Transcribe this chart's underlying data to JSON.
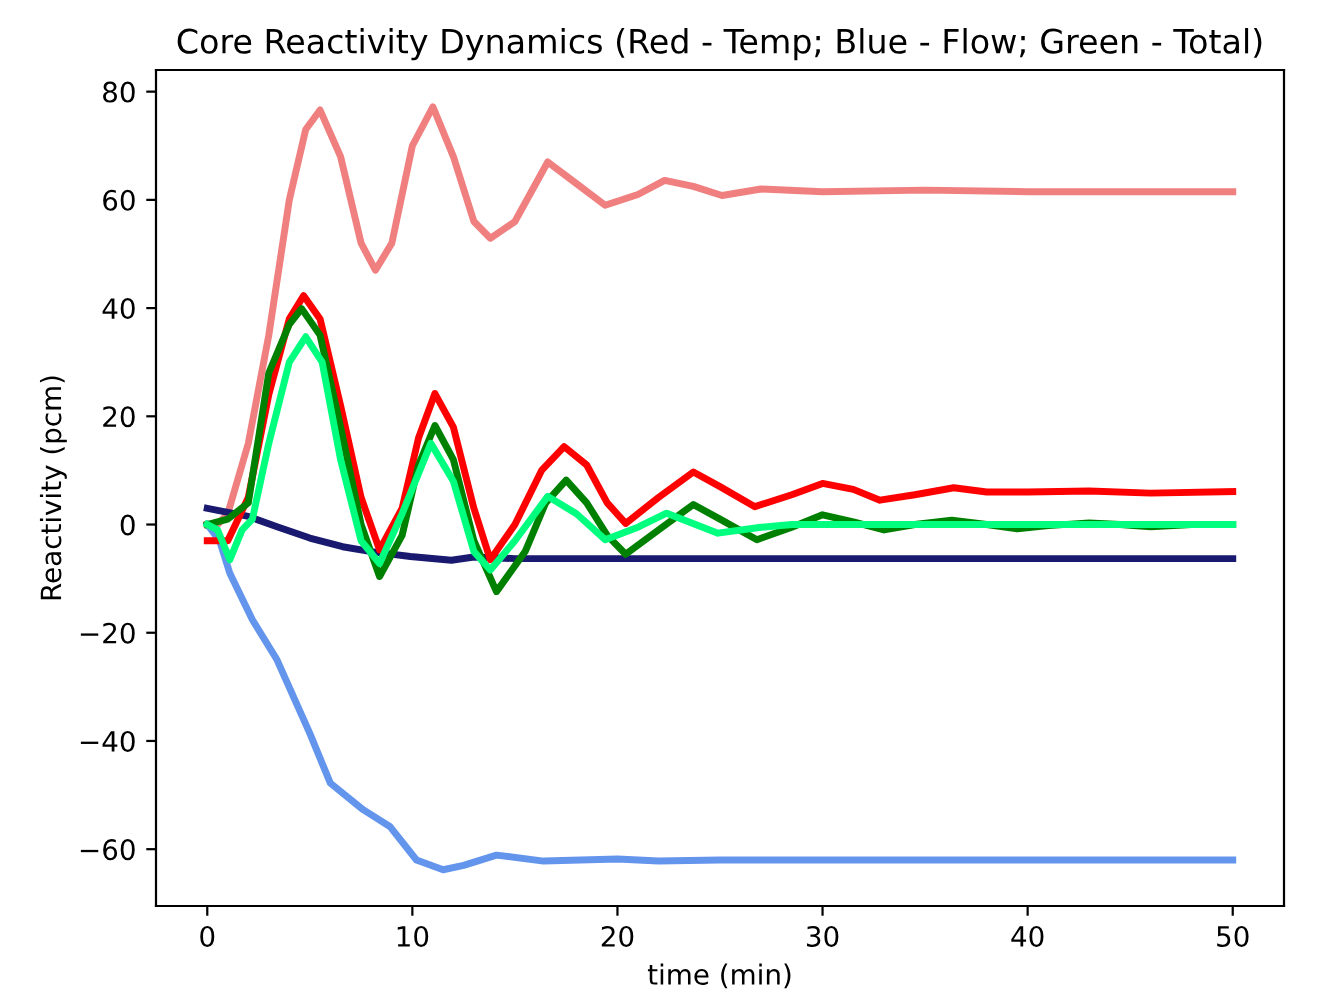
{
  "chart_data": {
    "type": "line",
    "title": "Core Reactivity Dynamics (Red - Temp; Blue - Flow; Green - Total)",
    "xlabel": "time (min)",
    "ylabel": "Reactivity (pcm)",
    "xlim": [
      -2.5,
      52.5
    ],
    "ylim": [
      -70.5,
      84
    ],
    "xticks": [
      0,
      10,
      20,
      30,
      40,
      50
    ],
    "yticks": [
      {
        "value": -60,
        "label": "−60"
      },
      {
        "value": -40,
        "label": "−40"
      },
      {
        "value": -20,
        "label": "−20"
      },
      0,
      20,
      40,
      60,
      80
    ],
    "grid": false,
    "legend": false,
    "marker": "none",
    "line_style": "solid",
    "series": [
      {
        "color": "#f08080",
        "x": [
          0,
          0.5,
          1,
          2,
          3,
          4,
          4.8,
          5.5,
          6.5,
          7.5,
          8.2,
          9,
          10,
          11,
          12,
          13,
          13.8,
          15,
          16.6,
          18,
          19.4,
          21,
          22.3,
          23.7,
          25.1,
          27,
          30,
          35,
          40,
          45,
          50
        ],
        "values": [
          0,
          0,
          2,
          15,
          35,
          60,
          73,
          76.6,
          68,
          52,
          47,
          52,
          70,
          77.2,
          68,
          56,
          52.9,
          56,
          67,
          63,
          59,
          61,
          63.6,
          62.5,
          60.8,
          62,
          61.5,
          61.8,
          61.5,
          61.5,
          61.5
        ]
      },
      {
        "color": "#6495ed",
        "x": [
          0,
          0.6,
          1.1,
          2.2,
          3.4,
          5,
          6,
          7.6,
          8.9,
          10.2,
          11.5,
          12.5,
          14.1,
          16.4,
          20,
          22,
          25,
          30,
          40,
          50
        ],
        "values": [
          0,
          -3,
          -9,
          -17.6,
          -25,
          -38.6,
          -47.8,
          -52.7,
          -55.8,
          -62,
          -63.8,
          -63,
          -61.1,
          -62.2,
          -61.8,
          -62.2,
          -62,
          -62,
          -62,
          -62
        ]
      },
      {
        "color": "#191970",
        "x": [
          0,
          2,
          3.4,
          5,
          6.6,
          8,
          9.9,
          11.9,
          13,
          15,
          20,
          30,
          40,
          50
        ],
        "values": [
          3,
          1.5,
          -0.4,
          -2.5,
          -4.1,
          -5,
          -5.9,
          -6.6,
          -6,
          -6.3,
          -6.3,
          -6.3,
          -6.3,
          -6.3
        ]
      },
      {
        "color": "#ff0000",
        "x": [
          0,
          1,
          2,
          3,
          4,
          4.7,
          5.5,
          6.5,
          7.5,
          8.4,
          9.5,
          10.3,
          11.1,
          12,
          13,
          13.8,
          15,
          16.3,
          17.4,
          18.5,
          19.5,
          20.4,
          22,
          23.7,
          25,
          26.7,
          28.5,
          30,
          31.5,
          32.8,
          34.5,
          36.4,
          38,
          40,
          43,
          46,
          50
        ],
        "values": [
          -3,
          -3,
          5,
          24,
          38,
          42.3,
          38,
          22,
          5,
          -4.7,
          3,
          16,
          24.2,
          18,
          3,
          -6.5,
          0,
          10,
          14.4,
          11,
          4,
          0.2,
          5,
          9.7,
          7,
          3.3,
          5.5,
          7.6,
          6.5,
          4.5,
          5.5,
          6.8,
          6,
          6,
          6.2,
          5.8,
          6.1
        ]
      },
      {
        "color": "#008000",
        "x": [
          0,
          1,
          2,
          3,
          4,
          4.6,
          5.5,
          6.5,
          7.5,
          8.4,
          9.5,
          10.3,
          11.1,
          12,
          13,
          14.1,
          15.5,
          16.5,
          17.5,
          18.5,
          19.5,
          20.4,
          22,
          23.7,
          25,
          26.8,
          28.5,
          30,
          31.5,
          33,
          34.5,
          36.3,
          38,
          39.5,
          41,
          43,
          44.5,
          46,
          48,
          50
        ],
        "values": [
          0,
          1,
          4,
          28,
          37,
          39.9,
          35,
          18,
          0,
          -9.6,
          -2,
          11,
          18.3,
          12,
          -3,
          -12.4,
          -5,
          4,
          8.2,
          4,
          -2,
          -5.5,
          -1,
          3.7,
          1,
          -2.8,
          -0.5,
          1.8,
          0.5,
          -1,
          0,
          0.8,
          0,
          -0.8,
          -0.2,
          0.3,
          0,
          -0.4,
          0,
          0
        ]
      },
      {
        "color": "#00ff7f",
        "x": [
          0,
          0.5,
          1.1,
          1.7,
          2.2,
          3,
          4,
          4.8,
          5.6,
          6.5,
          7.5,
          8.4,
          9.5,
          10.9,
          12,
          13,
          13.8,
          15,
          16.6,
          18,
          19.4,
          21,
          22.4,
          24.9,
          27,
          28.5,
          30,
          35,
          40,
          45,
          50
        ],
        "values": [
          0,
          -1,
          -6.5,
          -1,
          1,
          15,
          30,
          34.7,
          30,
          12,
          -3,
          -7.2,
          2,
          15,
          8,
          -5,
          -8.4,
          -3,
          5.2,
          2,
          -2.8,
          -0.5,
          2.1,
          -1.6,
          -0.5,
          0,
          0,
          0,
          0,
          0,
          0
        ]
      }
    ]
  }
}
